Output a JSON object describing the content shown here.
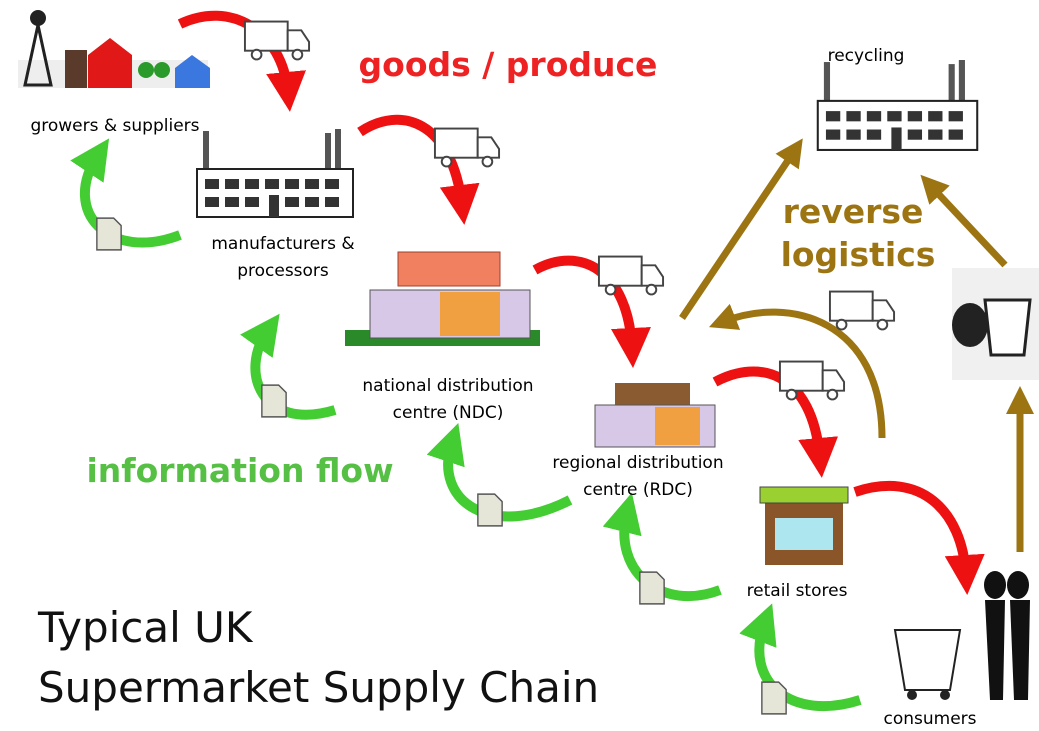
{
  "title": [
    "Typical UK",
    "Supermarket Supply Chain"
  ],
  "flows": {
    "goods": "goods / produce",
    "information": "information flow",
    "reverse": [
      "reverse",
      "logistics"
    ]
  },
  "nodes": [
    {
      "label": [
        "growers & suppliers"
      ]
    },
    {
      "label": [
        "manufacturers &",
        "processors"
      ]
    },
    {
      "label": [
        "national distribution",
        "centre (NDC)"
      ]
    },
    {
      "label": [
        "regional distribution",
        "centre (RDC)"
      ]
    },
    {
      "label": [
        "retail stores"
      ]
    },
    {
      "label": [
        "consumers"
      ]
    },
    {
      "label": [
        "recycling"
      ]
    }
  ]
}
